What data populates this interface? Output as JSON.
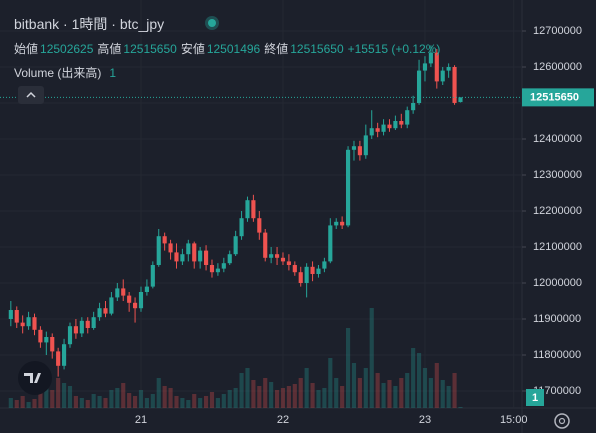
{
  "chart_data": {
    "type": "candlestick",
    "title": "bitbank · 1時間 · btc_jpy",
    "ohlc_labels": {
      "open": "始値",
      "high": "高値",
      "low": "安値",
      "close": "終値"
    },
    "change_label": "+15515 (+0.12%)",
    "volume_title": "Volume (出来高)",
    "up_color": "#26a69a",
    "down_color": "#ef5350",
    "grid": true,
    "xlim": [
      -1.83,
      86.4
    ],
    "xticks": [
      {
        "value": 22,
        "label": "21"
      },
      {
        "value": 46,
        "label": "22"
      },
      {
        "value": 70,
        "label": "23"
      },
      {
        "value": 85,
        "label": "15:00"
      }
    ],
    "ylim": [
      11652800,
      12786100
    ],
    "yticks": [
      11700000,
      11800000,
      11900000,
      12000000,
      12100000,
      12200000,
      12300000,
      12400000,
      12500000,
      12600000,
      12700000
    ],
    "volume_ylim": [
      0,
      100
    ],
    "x": [
      0,
      1,
      2,
      3,
      4,
      5,
      6,
      7,
      8,
      9,
      10,
      11,
      12,
      13,
      14,
      15,
      16,
      17,
      18,
      19,
      20,
      21,
      22,
      23,
      24,
      25,
      26,
      27,
      28,
      29,
      30,
      31,
      32,
      33,
      34,
      35,
      36,
      37,
      38,
      39,
      40,
      41,
      42,
      43,
      44,
      45,
      46,
      47,
      48,
      49,
      50,
      51,
      52,
      53,
      54,
      55,
      56,
      57,
      58,
      59,
      60,
      61,
      62,
      63,
      64,
      65,
      66,
      67,
      68,
      69,
      70,
      71,
      72,
      73,
      74,
      75,
      76
    ],
    "open": [
      11900000,
      11925000,
      11890000,
      11880000,
      11905000,
      11870000,
      11835000,
      11850000,
      11810000,
      11770000,
      11830000,
      11880000,
      11860000,
      11895000,
      11875000,
      11905000,
      11930000,
      11915000,
      11960000,
      11985000,
      11965000,
      11945000,
      11930000,
      11975000,
      11990000,
      12050000,
      12130000,
      12110000,
      12085000,
      12060000,
      12080000,
      12110000,
      12060000,
      12090000,
      12050000,
      12030000,
      12040000,
      12055000,
      12080000,
      12130000,
      12180000,
      12230000,
      12180000,
      12140000,
      12070000,
      12080000,
      12070000,
      12060000,
      12050000,
      12030000,
      12000000,
      12045000,
      12025000,
      12040000,
      12060000,
      12160000,
      12170000,
      12160000,
      12370000,
      12380000,
      12355000,
      12410000,
      12430000,
      12420000,
      12440000,
      12430000,
      12450000,
      12440000,
      12480000,
      12500000,
      12590000,
      12610000,
      12640000,
      12560000,
      12590000,
      12600000,
      12502625
    ],
    "high": [
      11950000,
      11935000,
      11910000,
      11920000,
      11915000,
      11880000,
      11865000,
      11860000,
      11820000,
      11845000,
      11890000,
      11900000,
      11905000,
      11905000,
      11920000,
      11945000,
      11950000,
      11975000,
      12000000,
      12010000,
      11975000,
      11960000,
      11990000,
      12010000,
      12060000,
      12150000,
      12140000,
      12120000,
      12110000,
      12095000,
      12120000,
      12115000,
      12100000,
      12105000,
      12065000,
      12055000,
      12070000,
      12090000,
      12145000,
      12200000,
      12240000,
      12245000,
      12200000,
      12150000,
      12100000,
      12100000,
      12085000,
      12080000,
      12060000,
      12045000,
      12055000,
      12060000,
      12050000,
      12070000,
      12180000,
      12180000,
      12185000,
      12380000,
      12395000,
      12395000,
      12440000,
      12480000,
      12445000,
      12455000,
      12455000,
      12465000,
      12470000,
      12490000,
      12520000,
      12620000,
      12630000,
      12660000,
      12650000,
      12600000,
      12610000,
      12605000,
      12515650
    ],
    "low": [
      11880000,
      11875000,
      11860000,
      11870000,
      11855000,
      11820000,
      11800000,
      11790000,
      11740000,
      11760000,
      11820000,
      11845000,
      11850000,
      11860000,
      11870000,
      11895000,
      11905000,
      11910000,
      11950000,
      11950000,
      11920000,
      11890000,
      11920000,
      11965000,
      11985000,
      12045000,
      12090000,
      12065000,
      12040000,
      12050000,
      12060000,
      12040000,
      12040000,
      12035000,
      12015000,
      12020000,
      12030000,
      12050000,
      12075000,
      12120000,
      12170000,
      12170000,
      12120000,
      12060000,
      12055000,
      12050000,
      12050000,
      12035000,
      12020000,
      11990000,
      11960000,
      12005000,
      12015000,
      12030000,
      12055000,
      12150000,
      12150000,
      12155000,
      12340000,
      12340000,
      12345000,
      12400000,
      12405000,
      12410000,
      12420000,
      12425000,
      12430000,
      12430000,
      12470000,
      12495000,
      12560000,
      12600000,
      12540000,
      12550000,
      12570000,
      12495000,
      12501496
    ],
    "close": [
      11925000,
      11890000,
      11880000,
      11905000,
      11870000,
      11835000,
      11850000,
      11810000,
      11770000,
      11830000,
      11880000,
      11860000,
      11895000,
      11875000,
      11905000,
      11930000,
      11915000,
      11960000,
      11985000,
      11965000,
      11945000,
      11930000,
      11975000,
      11990000,
      12050000,
      12130000,
      12110000,
      12085000,
      12060000,
      12080000,
      12110000,
      12060000,
      12090000,
      12050000,
      12030000,
      12040000,
      12055000,
      12080000,
      12130000,
      12180000,
      12230000,
      12180000,
      12140000,
      12070000,
      12080000,
      12070000,
      12060000,
      12050000,
      12030000,
      12000000,
      12045000,
      12025000,
      12040000,
      12060000,
      12160000,
      12170000,
      12160000,
      12370000,
      12380000,
      12355000,
      12410000,
      12430000,
      12420000,
      12440000,
      12430000,
      12450000,
      12440000,
      12480000,
      12500000,
      12590000,
      12610000,
      12640000,
      12560000,
      12590000,
      12600000,
      12500135,
      12515650
    ],
    "volume": [
      10,
      8,
      12,
      6,
      9,
      15,
      20,
      18,
      30,
      25,
      22,
      12,
      10,
      8,
      14,
      12,
      10,
      18,
      20,
      25,
      15,
      12,
      18,
      10,
      14,
      30,
      22,
      20,
      12,
      10,
      8,
      14,
      10,
      12,
      16,
      10,
      14,
      18,
      20,
      35,
      40,
      28,
      22,
      30,
      26,
      18,
      20,
      22,
      24,
      30,
      40,
      25,
      18,
      20,
      50,
      30,
      22,
      80,
      45,
      30,
      40,
      100,
      35,
      25,
      28,
      22,
      30,
      35,
      60,
      55,
      40,
      30,
      45,
      28,
      22,
      35,
      1
    ]
  }
}
